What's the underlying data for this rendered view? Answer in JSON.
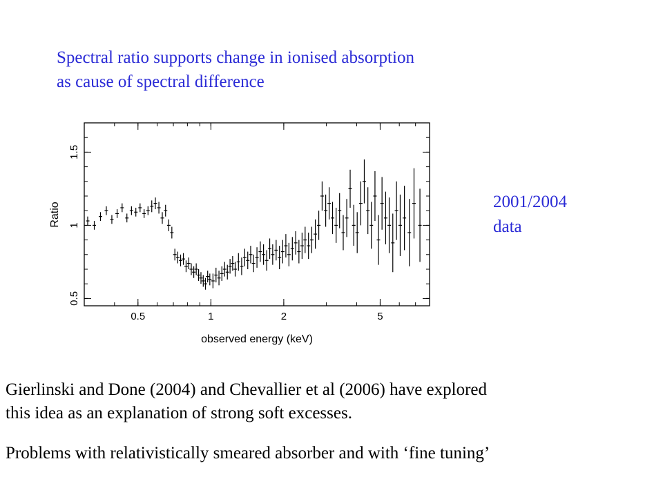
{
  "heading": {
    "line1": "Spectral ratio supports change in ionised absorption",
    "line2": "as cause of spectral difference"
  },
  "side_label": {
    "line1": "2001/2004",
    "line2": "data"
  },
  "body": {
    "p1_line1": "Gierlinski and Done (2004) and Chevallier et al (2006) have explored",
    "p1_line2": "this idea as an explanation of strong soft excesses.",
    "p2": "Problems with relativistically smeared absorber and with ‘fine tuning’"
  },
  "colors": {
    "heading": "#2b2bd6",
    "text": "#000000"
  },
  "chart_data": {
    "type": "scatter",
    "xlabel": "observed energy (keV)",
    "ylabel": "Ratio",
    "xscale": "log",
    "xlim": [
      0.3,
      8
    ],
    "ylim": [
      0.45,
      1.7
    ],
    "xticks": [
      {
        "v": 0.5,
        "label": "0.5"
      },
      {
        "v": 1,
        "label": "1"
      },
      {
        "v": 2,
        "label": "2"
      },
      {
        "v": 5,
        "label": "5"
      }
    ],
    "yticks": [
      {
        "v": 0.5,
        "label": "0.5"
      },
      {
        "v": 1,
        "label": "1"
      },
      {
        "v": 1.5,
        "label": "1.5"
      }
    ],
    "grid": false,
    "series": [
      {
        "x": [
          0.31,
          0.33,
          0.35,
          0.37,
          0.39,
          0.41,
          0.43,
          0.45,
          0.47,
          0.49,
          0.51,
          0.53,
          0.55,
          0.57,
          0.59,
          0.61,
          0.63,
          0.65,
          0.67,
          0.69,
          0.71,
          0.73,
          0.75,
          0.77,
          0.79,
          0.81,
          0.83,
          0.85,
          0.87,
          0.89,
          0.91,
          0.93,
          0.95,
          0.97,
          0.99,
          1.02,
          1.05,
          1.08,
          1.11,
          1.14,
          1.17,
          1.2,
          1.23,
          1.26,
          1.3,
          1.34,
          1.38,
          1.42,
          1.46,
          1.5,
          1.55,
          1.6,
          1.65,
          1.7,
          1.75,
          1.8,
          1.86,
          1.92,
          1.98,
          2.04,
          2.1,
          2.17,
          2.24,
          2.31,
          2.38,
          2.45,
          2.53,
          2.61,
          2.7,
          2.79,
          2.88,
          2.98,
          3.08,
          3.18,
          3.29,
          3.4,
          3.52,
          3.64,
          3.76,
          3.89,
          4.02,
          4.16,
          4.3,
          4.45,
          4.6,
          4.76,
          4.92,
          5.09,
          5.27,
          5.45,
          5.64,
          5.84,
          6.05,
          6.3,
          6.6,
          6.9,
          7.3
        ],
        "y": [
          1.03,
          1.0,
          1.06,
          1.1,
          1.04,
          1.08,
          1.12,
          1.05,
          1.1,
          1.09,
          1.12,
          1.08,
          1.1,
          1.13,
          1.15,
          1.12,
          1.05,
          1.1,
          1.0,
          0.95,
          0.8,
          0.78,
          0.76,
          0.77,
          0.72,
          0.74,
          0.7,
          0.68,
          0.7,
          0.66,
          0.64,
          0.62,
          0.6,
          0.65,
          0.63,
          0.62,
          0.66,
          0.64,
          0.67,
          0.7,
          0.68,
          0.72,
          0.74,
          0.7,
          0.75,
          0.72,
          0.78,
          0.76,
          0.8,
          0.74,
          0.78,
          0.82,
          0.8,
          0.76,
          0.84,
          0.8,
          0.83,
          0.78,
          0.82,
          0.86,
          0.8,
          0.84,
          0.88,
          0.82,
          0.86,
          0.9,
          0.86,
          0.9,
          0.94,
          1.0,
          1.2,
          1.1,
          1.15,
          1.05,
          1.0,
          1.1,
          0.95,
          1.05,
          1.25,
          1.0,
          0.95,
          1.15,
          1.3,
          1.1,
          1.0,
          1.2,
          0.9,
          1.15,
          1.05,
          1.0,
          0.88,
          1.1,
          1.0,
          1.05,
          0.95,
          1.15,
          1.0
        ],
        "err": [
          0.03,
          0.03,
          0.03,
          0.03,
          0.03,
          0.03,
          0.03,
          0.03,
          0.03,
          0.03,
          0.03,
          0.03,
          0.03,
          0.04,
          0.04,
          0.04,
          0.04,
          0.04,
          0.04,
          0.04,
          0.04,
          0.04,
          0.04,
          0.04,
          0.04,
          0.04,
          0.04,
          0.04,
          0.04,
          0.04,
          0.04,
          0.04,
          0.04,
          0.04,
          0.04,
          0.05,
          0.05,
          0.05,
          0.05,
          0.05,
          0.05,
          0.05,
          0.05,
          0.05,
          0.06,
          0.06,
          0.06,
          0.06,
          0.06,
          0.06,
          0.07,
          0.07,
          0.07,
          0.07,
          0.07,
          0.07,
          0.07,
          0.08,
          0.08,
          0.08,
          0.08,
          0.08,
          0.08,
          0.08,
          0.09,
          0.09,
          0.09,
          0.09,
          0.1,
          0.1,
          0.1,
          0.11,
          0.11,
          0.11,
          0.12,
          0.12,
          0.12,
          0.13,
          0.13,
          0.14,
          0.14,
          0.15,
          0.15,
          0.16,
          0.16,
          0.17,
          0.17,
          0.18,
          0.18,
          0.19,
          0.2,
          0.2,
          0.21,
          0.22,
          0.23,
          0.24,
          0.25
        ]
      }
    ]
  }
}
